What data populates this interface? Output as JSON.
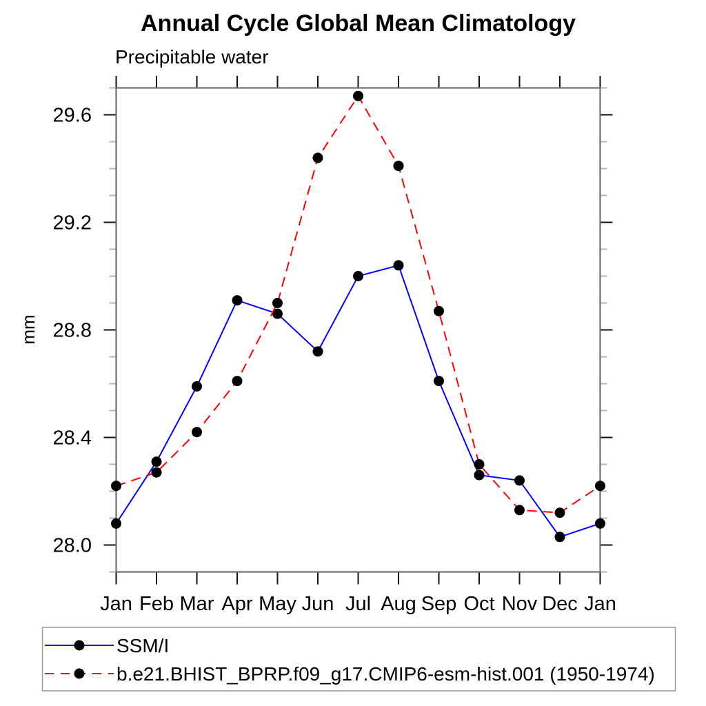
{
  "chart_data": {
    "type": "line",
    "title": "Annual Cycle Global Mean Climatology",
    "subtitle": "Precipitable water",
    "xlabel": "",
    "ylabel": "mm",
    "categories": [
      "Jan",
      "Feb",
      "Mar",
      "Apr",
      "May",
      "Jun",
      "Jul",
      "Aug",
      "Sep",
      "Oct",
      "Nov",
      "Dec",
      "Jan"
    ],
    "series": [
      {
        "name": "SSM/I",
        "line_color": "#0000ff",
        "line_style": "solid",
        "marker": "filled-circle",
        "marker_color": "#000000",
        "values": [
          28.08,
          28.31,
          28.59,
          28.91,
          28.86,
          28.72,
          29.0,
          29.04,
          28.61,
          28.26,
          28.24,
          28.03,
          28.08
        ]
      },
      {
        "name": "b.e21.BHIST_BPRP.f09_g17.CMIP6-esm-hist.001 (1950-1974)",
        "line_color": "#ff0000",
        "line_style": "dashed",
        "marker": "filled-circle",
        "marker_color": "#000000",
        "values": [
          28.22,
          28.27,
          28.42,
          28.61,
          28.9,
          29.44,
          29.67,
          29.41,
          28.87,
          28.3,
          28.13,
          28.12,
          28.22
        ]
      }
    ],
    "ylim": [
      27.9,
      29.7
    ],
    "yticks": [
      28.0,
      28.4,
      28.8,
      29.2,
      29.6
    ],
    "ytick_labels": [
      "28.0",
      "28.4",
      "28.8",
      "29.2",
      "29.6"
    ],
    "yminor_step": 0.1,
    "grid": false,
    "legend_position": "bottom-left"
  }
}
